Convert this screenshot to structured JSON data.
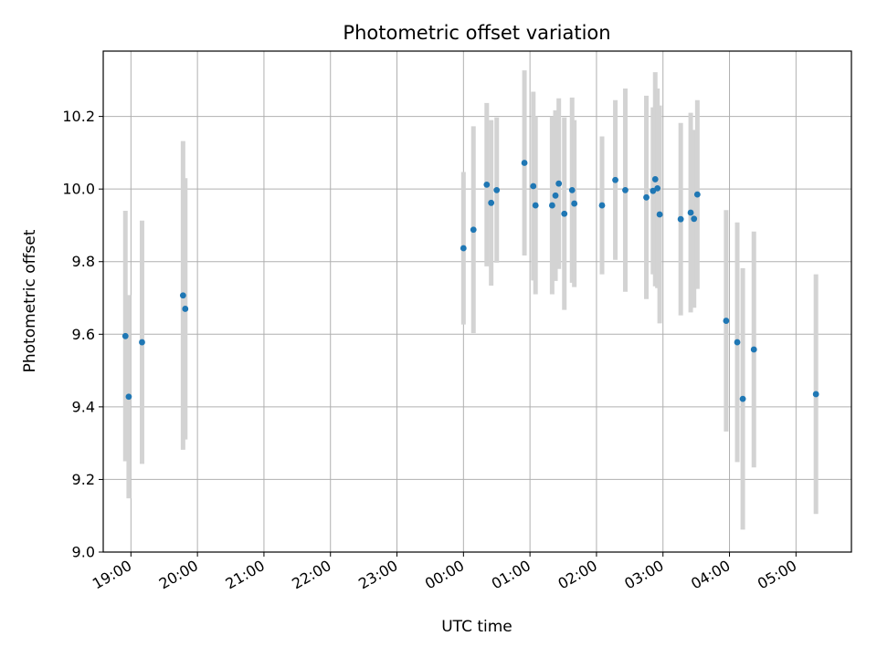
{
  "chart_data": {
    "type": "scatter",
    "title": "Photometric offset variation",
    "xlabel": "UTC time",
    "ylabel": "Photometric offset",
    "xlim": [
      "2024-01-01T18:35",
      "2024-01-02T05:50"
    ],
    "ylim": [
      9.0,
      10.38
    ],
    "x_ticks": [
      "19:00",
      "20:00",
      "21:00",
      "22:00",
      "23:00",
      "00:00",
      "01:00",
      "02:00",
      "03:00",
      "04:00",
      "05:00"
    ],
    "y_ticks": [
      "9.0",
      "9.2",
      "9.4",
      "9.6",
      "9.8",
      "10.0",
      "10.2"
    ],
    "grid": true,
    "marker_color": "#1f77b4",
    "errorbar_color": "#d3d3d3",
    "points": [
      {
        "t": "2024-01-01T18:55",
        "y": 9.595,
        "err": 0.345
      },
      {
        "t": "2024-01-01T18:58",
        "y": 9.428,
        "err": 0.28
      },
      {
        "t": "2024-01-01T19:10",
        "y": 9.578,
        "err": 0.335
      },
      {
        "t": "2024-01-01T19:47",
        "y": 9.707,
        "err": 0.425
      },
      {
        "t": "2024-01-01T19:49",
        "y": 9.67,
        "err": 0.36
      },
      {
        "t": "2024-01-02T00:00",
        "y": 9.837,
        "err": 0.21
      },
      {
        "t": "2024-01-02T00:09",
        "y": 9.888,
        "err": 0.285
      },
      {
        "t": "2024-01-02T00:21",
        "y": 10.012,
        "err": 0.225
      },
      {
        "t": "2024-01-02T00:25",
        "y": 9.962,
        "err": 0.228
      },
      {
        "t": "2024-01-02T00:30",
        "y": 9.997,
        "err": 0.2
      },
      {
        "t": "2024-01-02T00:55",
        "y": 10.072,
        "err": 0.255
      },
      {
        "t": "2024-01-02T01:03",
        "y": 10.008,
        "err": 0.26
      },
      {
        "t": "2024-01-02T01:05",
        "y": 9.955,
        "err": 0.245
      },
      {
        "t": "2024-01-02T01:20",
        "y": 9.955,
        "err": 0.245
      },
      {
        "t": "2024-01-02T01:23",
        "y": 9.982,
        "err": 0.235
      },
      {
        "t": "2024-01-02T01:26",
        "y": 10.015,
        "err": 0.235
      },
      {
        "t": "2024-01-02T01:31",
        "y": 9.932,
        "err": 0.265
      },
      {
        "t": "2024-01-02T01:38",
        "y": 9.997,
        "err": 0.255
      },
      {
        "t": "2024-01-02T01:40",
        "y": 9.96,
        "err": 0.23
      },
      {
        "t": "2024-01-02T02:05",
        "y": 9.955,
        "err": 0.19
      },
      {
        "t": "2024-01-02T02:17",
        "y": 10.025,
        "err": 0.22
      },
      {
        "t": "2024-01-02T02:26",
        "y": 9.997,
        "err": 0.28
      },
      {
        "t": "2024-01-02T02:45",
        "y": 9.977,
        "err": 0.28
      },
      {
        "t": "2024-01-02T02:51",
        "y": 9.995,
        "err": 0.23
      },
      {
        "t": "2024-01-02T02:53",
        "y": 10.027,
        "err": 0.295
      },
      {
        "t": "2024-01-02T02:55",
        "y": 10.002,
        "err": 0.275
      },
      {
        "t": "2024-01-02T02:57",
        "y": 9.93,
        "err": 0.3
      },
      {
        "t": "2024-01-02T03:16",
        "y": 9.917,
        "err": 0.265
      },
      {
        "t": "2024-01-02T03:25",
        "y": 9.935,
        "err": 0.275
      },
      {
        "t": "2024-01-02T03:28",
        "y": 9.918,
        "err": 0.245
      },
      {
        "t": "2024-01-02T03:31",
        "y": 9.985,
        "err": 0.26
      },
      {
        "t": "2024-01-02T03:57",
        "y": 9.637,
        "err": 0.305
      },
      {
        "t": "2024-01-02T04:07",
        "y": 9.578,
        "err": 0.33
      },
      {
        "t": "2024-01-02T04:12",
        "y": 9.422,
        "err": 0.36
      },
      {
        "t": "2024-01-02T04:22",
        "y": 9.558,
        "err": 0.325
      },
      {
        "t": "2024-01-02T05:18",
        "y": 9.435,
        "err": 0.33
      }
    ]
  }
}
